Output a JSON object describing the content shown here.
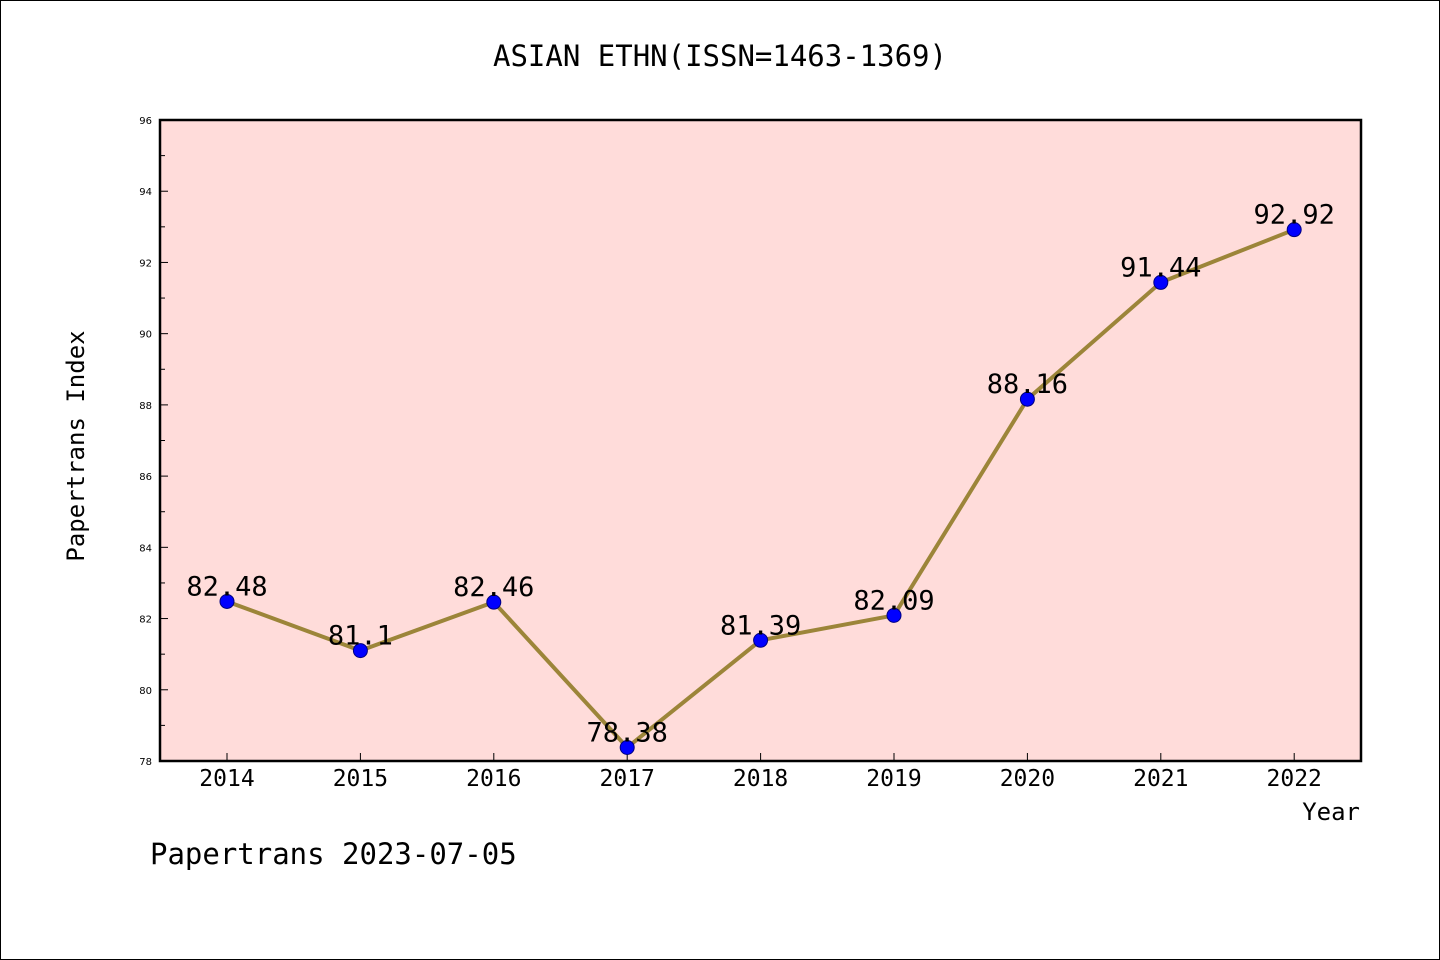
{
  "chart_data": {
    "type": "line",
    "title": "ASIAN ETHN(ISSN=1463-1369)",
    "xlabel": "Year",
    "ylabel": "Papertrans Index",
    "categories": [
      "2014",
      "2015",
      "2016",
      "2017",
      "2018",
      "2019",
      "2020",
      "2021",
      "2022"
    ],
    "series": [
      {
        "values": [
          82.48,
          81.1,
          82.46,
          78.38,
          81.39,
          82.09,
          88.16,
          91.44,
          92.92
        ],
        "labels": [
          "82.48",
          "81.1",
          "82.46",
          "78.38",
          "81.39",
          "82.09",
          "88.16",
          "91.44",
          "92.92"
        ]
      }
    ],
    "ylim": [
      78,
      96
    ],
    "yticks": [
      "78",
      "80",
      "82",
      "84",
      "86",
      "88",
      "90",
      "92",
      "94",
      "96"
    ],
    "grid": false,
    "legend": "none"
  },
  "footer": {
    "text": "Papertrans 2023-07-05"
  },
  "colors": {
    "plot_background": "#FFDCDA",
    "line": "#9C8539",
    "marker_fill": "#0000FF",
    "marker_edge": "#000080",
    "axes": "#000000"
  }
}
